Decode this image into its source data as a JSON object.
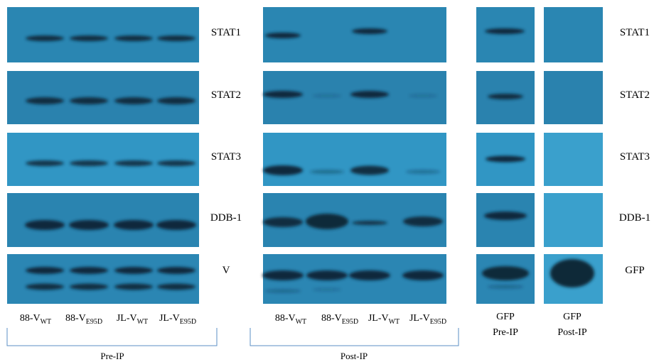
{
  "pre_ip": {
    "bracket": "Pre-IP",
    "lanes": [
      {
        "name": "88-V",
        "sub": "WT"
      },
      {
        "name": "88-V",
        "sub": "E95D"
      },
      {
        "name": "JL-V",
        "sub": "WT"
      },
      {
        "name": "JL-V",
        "sub": "E95D"
      }
    ]
  },
  "post_ip": {
    "bracket": "Post-IP",
    "lanes": [
      {
        "name": "88-V",
        "sub": "WT"
      },
      {
        "name": "88-V",
        "sub": "E95D"
      },
      {
        "name": "JL-V",
        "sub": "WT"
      },
      {
        "name": "JL-V",
        "sub": "E95D"
      }
    ]
  },
  "gfp": {
    "lanes": [
      {
        "name": "GFP",
        "line2": "Pre-IP"
      },
      {
        "name": "GFP",
        "line2": "Post-IP"
      }
    ]
  },
  "row_labels_middle": [
    "STAT1",
    "STAT2",
    "STAT3",
    "DDB-1",
    "V"
  ],
  "row_labels_right": [
    "STAT1",
    "STAT2",
    "STAT3",
    "DDB-1",
    "GFP"
  ]
}
